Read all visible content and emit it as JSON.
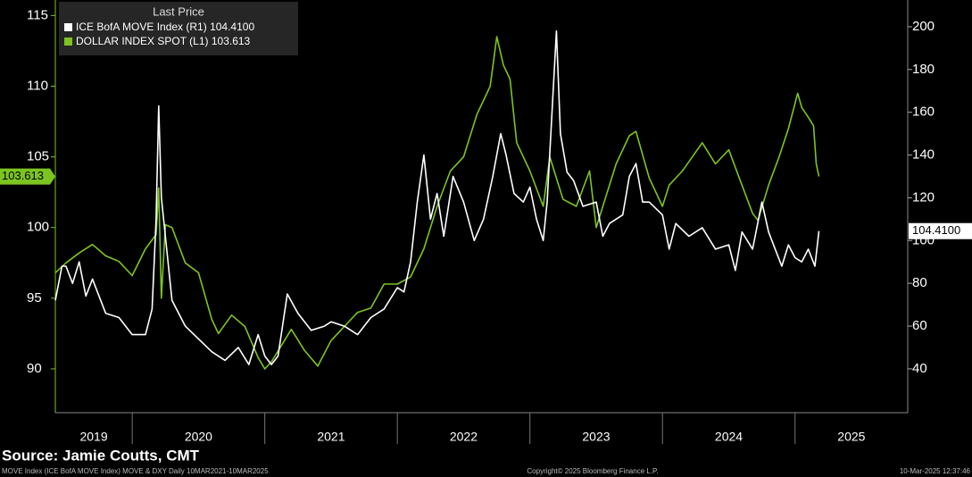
{
  "chart_data": {
    "type": "line",
    "legend_title": "Last Price",
    "legend": "upper left",
    "xlim": [
      2019.42,
      2025.85
    ],
    "xticks": [
      2019,
      2020,
      2021,
      2022,
      2023,
      2024,
      2025
    ],
    "ylim": [
      86.9,
      116.1
    ],
    "yticks": [
      90,
      95,
      100,
      105,
      110,
      115
    ],
    "y2lim": [
      19.5,
      212.5
    ],
    "y2ticks": [
      40,
      60,
      80,
      100,
      120,
      140,
      160,
      180,
      200
    ],
    "series": [
      {
        "name": "ICE BofA MOVE Index  (R1)",
        "last_label": "104.4100",
        "color": "#ffffff",
        "axis": "y2",
        "x": [
          2019.42,
          2019.47,
          2019.5,
          2019.55,
          2019.6,
          2019.65,
          2019.7,
          2019.8,
          2019.9,
          2020.0,
          2020.1,
          2020.15,
          2020.18,
          2020.2,
          2020.22,
          2020.24,
          2020.3,
          2020.4,
          2020.5,
          2020.6,
          2020.7,
          2020.8,
          2020.88,
          2020.95,
          2021.0,
          2021.05,
          2021.1,
          2021.17,
          2021.25,
          2021.35,
          2021.45,
          2021.5,
          2021.6,
          2021.7,
          2021.8,
          2021.9,
          2022.0,
          2022.05,
          2022.1,
          2022.15,
          2022.2,
          2022.25,
          2022.3,
          2022.35,
          2022.42,
          2022.5,
          2022.58,
          2022.65,
          2022.72,
          2022.78,
          2022.82,
          2022.88,
          2022.95,
          2023.0,
          2023.05,
          2023.1,
          2023.13,
          2023.2,
          2023.23,
          2023.28,
          2023.33,
          2023.4,
          2023.5,
          2023.55,
          2023.6,
          2023.7,
          2023.75,
          2023.8,
          2023.85,
          2023.9,
          2024.0,
          2024.05,
          2024.1,
          2024.2,
          2024.3,
          2024.4,
          2024.5,
          2024.55,
          2024.6,
          2024.68,
          2024.75,
          2024.8,
          2024.85,
          2024.9,
          2024.95,
          2025.0,
          2025.05,
          2025.1,
          2025.15,
          2025.18
        ],
        "values": [
          72,
          88,
          88,
          80,
          90,
          74,
          82,
          66,
          64,
          56,
          56,
          68,
          110,
          163,
          120,
          108,
          72,
          60,
          54,
          48,
          44,
          50,
          42,
          56,
          46,
          42,
          46,
          75,
          66,
          58,
          60,
          62,
          60,
          56,
          64,
          68,
          78,
          76,
          90,
          118,
          140,
          110,
          122,
          102,
          130,
          118,
          100,
          110,
          130,
          150,
          140,
          122,
          118,
          125,
          110,
          100,
          118,
          198,
          150,
          132,
          128,
          116,
          118,
          102,
          108,
          112,
          130,
          136,
          118,
          118,
          112,
          96,
          108,
          102,
          106,
          96,
          98,
          86,
          104,
          96,
          118,
          104,
          96,
          88,
          98,
          92,
          90,
          96,
          88,
          104.41
        ]
      },
      {
        "name": "DOLLAR INDEX SPOT  (L1)",
        "last_label": "103.613",
        "color": "#7cc520",
        "x": [
          2019.42,
          2019.5,
          2019.6,
          2019.7,
          2019.8,
          2019.9,
          2020.0,
          2020.1,
          2020.18,
          2020.2,
          2020.22,
          2020.25,
          2020.3,
          2020.4,
          2020.5,
          2020.6,
          2020.65,
          2020.75,
          2020.85,
          2020.95,
          2021.0,
          2021.05,
          2021.2,
          2021.3,
          2021.4,
          2021.5,
          2021.6,
          2021.7,
          2021.8,
          2021.9,
          2022.0,
          2022.1,
          2022.2,
          2022.3,
          2022.4,
          2022.5,
          2022.6,
          2022.7,
          2022.75,
          2022.8,
          2022.85,
          2022.9,
          2023.0,
          2023.1,
          2023.15,
          2023.25,
          2023.35,
          2023.45,
          2023.5,
          2023.55,
          2023.65,
          2023.75,
          2023.8,
          2023.9,
          2024.0,
          2024.05,
          2024.15,
          2024.3,
          2024.4,
          2024.5,
          2024.6,
          2024.68,
          2024.72,
          2024.8,
          2024.88,
          2024.95,
          2025.02,
          2025.05,
          2025.1,
          2025.14,
          2025.16,
          2025.18
        ],
        "values": [
          96.8,
          97.5,
          98.2,
          98.8,
          98.0,
          97.6,
          96.6,
          98.5,
          99.5,
          102.8,
          95.0,
          100.2,
          100.0,
          97.5,
          96.8,
          93.5,
          92.5,
          93.8,
          93.0,
          90.8,
          90.0,
          90.5,
          92.8,
          91.3,
          90.2,
          92.0,
          93.0,
          94.0,
          94.3,
          96.0,
          96.0,
          96.5,
          98.5,
          101.5,
          104.0,
          105.0,
          108.0,
          110.0,
          113.5,
          111.5,
          110.5,
          106.0,
          104.0,
          101.5,
          105.0,
          102.0,
          101.5,
          104.0,
          100.0,
          101.5,
          104.5,
          106.5,
          106.8,
          103.5,
          101.5,
          103.0,
          104.0,
          106.0,
          104.5,
          105.5,
          103.0,
          101.0,
          100.5,
          103.0,
          105.0,
          107.0,
          109.5,
          108.5,
          107.8,
          107.2,
          104.5,
          103.613
        ]
      }
    ],
    "source": "Source: Jamie Coutts, CMT",
    "footer_left": "MOVE Index (ICE BofA MOVE Index) MOVE & DXY  Daily 10MAR2021-10MAR2025",
    "footer_center": "Copyright© 2025 Bloomberg Finance L.P.",
    "footer_right": "10-Mar-2025 12:37:46"
  }
}
